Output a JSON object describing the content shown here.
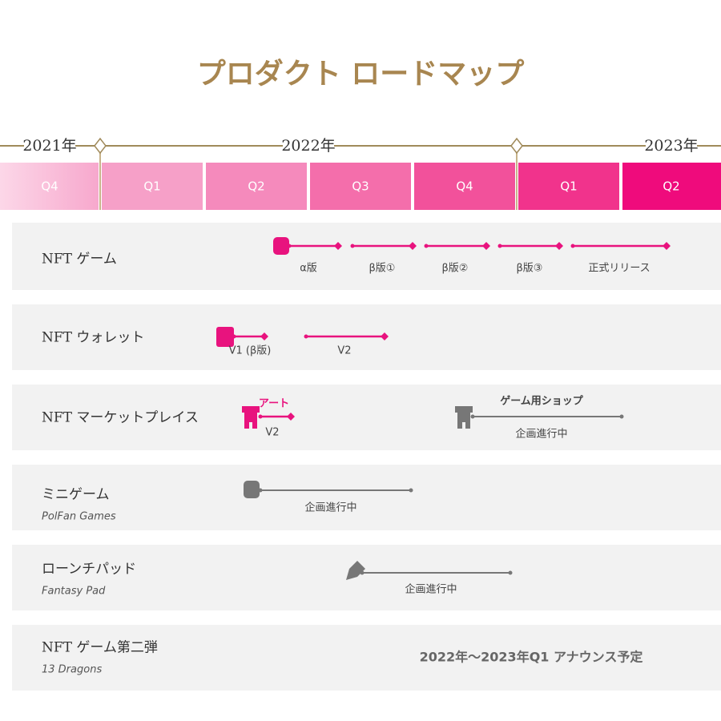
{
  "header": {
    "title": "プロダクト ロードマップ"
  },
  "timeline": {
    "years": [
      "2021年",
      "2022年",
      "2023年"
    ],
    "quarters": [
      "Q4",
      "Q1",
      "Q2",
      "Q3",
      "Q4",
      "Q1",
      "Q2"
    ]
  },
  "rows": [
    {
      "name": "NFT ゲーム",
      "items": [
        "α版",
        "β版①",
        "β版②",
        "β版③",
        "正式リリース"
      ]
    },
    {
      "name": "NFT ウォレット",
      "items": [
        "V1 (β版)",
        "V2"
      ]
    },
    {
      "name": "NFT マーケットプレイス",
      "items": [
        {
          "top": "アート",
          "bottom": "V2"
        },
        {
          "top": "ゲーム用ショップ",
          "bottom": "企画進行中"
        }
      ]
    },
    {
      "name": "ミニゲーム",
      "subtitle": "PolFan Games",
      "items": [
        "企画進行中"
      ]
    },
    {
      "name": "ローンチパッド",
      "subtitle": "Fantasy Pad",
      "items": [
        "企画進行中"
      ]
    },
    {
      "name": "NFT ゲーム第二弾",
      "subtitle": "13 Dragons",
      "note": "2022年〜2023年Q1 アナウンス予定"
    }
  ]
}
